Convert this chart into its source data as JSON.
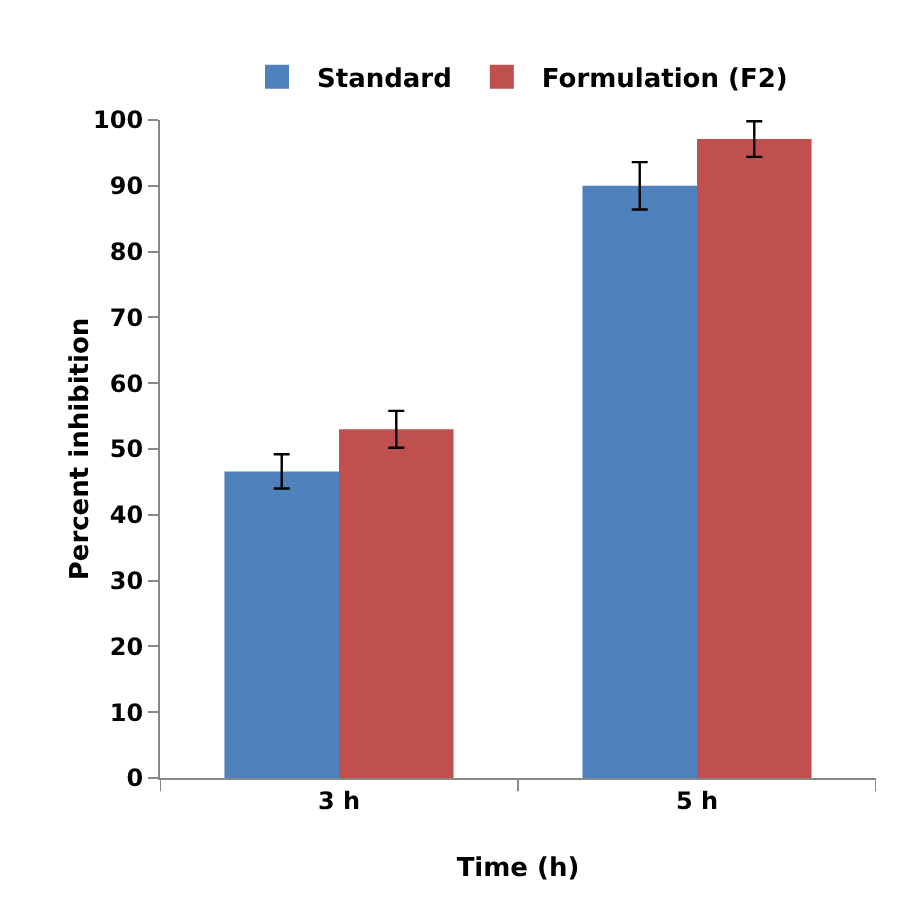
{
  "chart_data": {
    "type": "bar",
    "xlabel": "Time (h)",
    "ylabel": "Percent inhibition",
    "categories": [
      "3 h",
      "5 h"
    ],
    "series": [
      {
        "name": "Standard",
        "color": "#4f81bd",
        "values": [
          46.6,
          90
        ],
        "errors": [
          2.6,
          3.6
        ]
      },
      {
        "name": "Formulation (F2)",
        "color": "#c0504d",
        "values": [
          53,
          97.1
        ],
        "errors": [
          2.8,
          2.7
        ]
      }
    ],
    "ylim": [
      0,
      100
    ],
    "yticks": [
      0,
      10,
      20,
      30,
      40,
      50,
      60,
      70,
      80,
      90,
      100
    ],
    "grid": false,
    "legend": "top"
  }
}
